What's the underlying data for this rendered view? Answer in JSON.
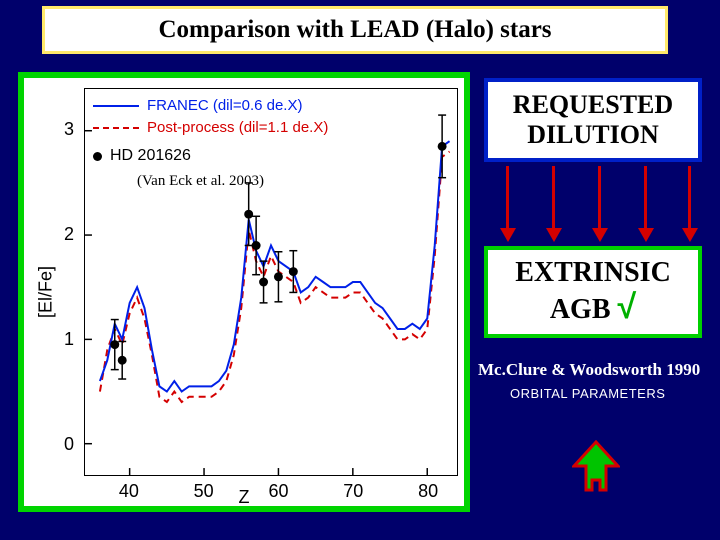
{
  "title": "Comparison with LEAD (Halo) stars",
  "title_fontsize": 25,
  "box_requested": {
    "line1": "REQUESTED",
    "line2": "DILUTION",
    "fontsize": 26
  },
  "box_extrinsic": {
    "line1": "EXTRINSIC",
    "line2_pre": "AGB ",
    "check": "√",
    "fontsize": 28
  },
  "ref_main": "Mc.Clure & Woodsworth 1990",
  "ref_main_fontsize": 17,
  "ref_sub": "ORBITAL PARAMETERS",
  "ref_sub_fontsize": 13,
  "chart": {
    "type": "line+scatter",
    "ylabel": "[El/Fe]",
    "xlabel": "Z",
    "xlim": [
      34,
      84
    ],
    "ylim": [
      -0.3,
      3.4
    ],
    "xticks": [
      40,
      50,
      60,
      70,
      80
    ],
    "yticks": [
      0,
      1,
      2,
      3
    ],
    "tick_fontsize": 18,
    "label_fontsize": 18,
    "legend": {
      "franec": {
        "label": "FRANEC (dil=0.6 de.X)",
        "color": "#0020e8",
        "dash": "solid",
        "fontsize": 15
      },
      "post": {
        "label": "Post-process (dil=1.1 de.X)",
        "color": "#d40000",
        "dash": "dashed",
        "fontsize": 15
      },
      "hd": {
        "label": "HD 201626",
        "fontsize": 16
      }
    },
    "citation": "(Van Eck et al. 2003)",
    "citation_fontsize": 15,
    "data_points": [
      {
        "z": 38,
        "y": 0.95,
        "err": 0.24
      },
      {
        "z": 39,
        "y": 0.8,
        "err": 0.18
      },
      {
        "z": 56,
        "y": 2.2,
        "err": 0.3
      },
      {
        "z": 57,
        "y": 1.9,
        "err": 0.28
      },
      {
        "z": 58,
        "y": 1.55,
        "err": 0.2
      },
      {
        "z": 60,
        "y": 1.6,
        "err": 0.24
      },
      {
        "z": 62,
        "y": 1.65,
        "err": 0.2
      },
      {
        "z": 82,
        "y": 2.85,
        "err": 0.3
      }
    ],
    "franec_line": [
      [
        36,
        0.6
      ],
      [
        37,
        0.8
      ],
      [
        38,
        1.15
      ],
      [
        39,
        1.0
      ],
      [
        40,
        1.35
      ],
      [
        41,
        1.5
      ],
      [
        42,
        1.3
      ],
      [
        43,
        0.9
      ],
      [
        44,
        0.55
      ],
      [
        45,
        0.5
      ],
      [
        46,
        0.6
      ],
      [
        47,
        0.5
      ],
      [
        48,
        0.55
      ],
      [
        49,
        0.55
      ],
      [
        50,
        0.55
      ],
      [
        51,
        0.55
      ],
      [
        52,
        0.6
      ],
      [
        53,
        0.7
      ],
      [
        54,
        0.95
      ],
      [
        55,
        1.4
      ],
      [
        56,
        2.15
      ],
      [
        57,
        1.85
      ],
      [
        58,
        1.7
      ],
      [
        59,
        1.9
      ],
      [
        60,
        1.75
      ],
      [
        62,
        1.65
      ],
      [
        63,
        1.45
      ],
      [
        64,
        1.5
      ],
      [
        65,
        1.6
      ],
      [
        66,
        1.55
      ],
      [
        67,
        1.5
      ],
      [
        68,
        1.5
      ],
      [
        69,
        1.5
      ],
      [
        70,
        1.55
      ],
      [
        71,
        1.55
      ],
      [
        72,
        1.45
      ],
      [
        73,
        1.35
      ],
      [
        74,
        1.3
      ],
      [
        75,
        1.2
      ],
      [
        76,
        1.1
      ],
      [
        77,
        1.1
      ],
      [
        78,
        1.15
      ],
      [
        79,
        1.1
      ],
      [
        80,
        1.2
      ],
      [
        81,
        1.9
      ],
      [
        82,
        2.85
      ],
      [
        83,
        2.9
      ]
    ],
    "post_line": [
      [
        36,
        0.5
      ],
      [
        37,
        0.9
      ],
      [
        38,
        1.1
      ],
      [
        39,
        0.95
      ],
      [
        40,
        1.25
      ],
      [
        41,
        1.4
      ],
      [
        42,
        1.2
      ],
      [
        43,
        0.85
      ],
      [
        44,
        0.45
      ],
      [
        45,
        0.4
      ],
      [
        46,
        0.5
      ],
      [
        47,
        0.4
      ],
      [
        48,
        0.45
      ],
      [
        49,
        0.45
      ],
      [
        50,
        0.45
      ],
      [
        51,
        0.45
      ],
      [
        52,
        0.5
      ],
      [
        53,
        0.6
      ],
      [
        54,
        0.85
      ],
      [
        55,
        1.3
      ],
      [
        56,
        2.05
      ],
      [
        57,
        1.75
      ],
      [
        58,
        1.6
      ],
      [
        59,
        1.8
      ],
      [
        60,
        1.65
      ],
      [
        62,
        1.55
      ],
      [
        63,
        1.35
      ],
      [
        64,
        1.4
      ],
      [
        65,
        1.5
      ],
      [
        66,
        1.45
      ],
      [
        67,
        1.4
      ],
      [
        68,
        1.4
      ],
      [
        69,
        1.4
      ],
      [
        70,
        1.45
      ],
      [
        71,
        1.45
      ],
      [
        72,
        1.35
      ],
      [
        73,
        1.25
      ],
      [
        74,
        1.2
      ],
      [
        75,
        1.1
      ],
      [
        76,
        1.0
      ],
      [
        77,
        1.0
      ],
      [
        78,
        1.05
      ],
      [
        79,
        1.0
      ],
      [
        80,
        1.1
      ],
      [
        81,
        1.8
      ],
      [
        82,
        2.75
      ],
      [
        83,
        2.8
      ]
    ],
    "line_colors": {
      "franec": "#0020e8",
      "post": "#d40000"
    },
    "background_color": "#ffffff"
  },
  "colors": {
    "page_bg": "#00006b",
    "title_border": "#ffe96a",
    "chart_border": "#00d400",
    "box_req_border": "#0020c8",
    "box_ext_border": "#00d000",
    "arrow_red": "#d40000",
    "up_arrow_fill": "#00c400",
    "up_arrow_edge": "#d40000"
  }
}
